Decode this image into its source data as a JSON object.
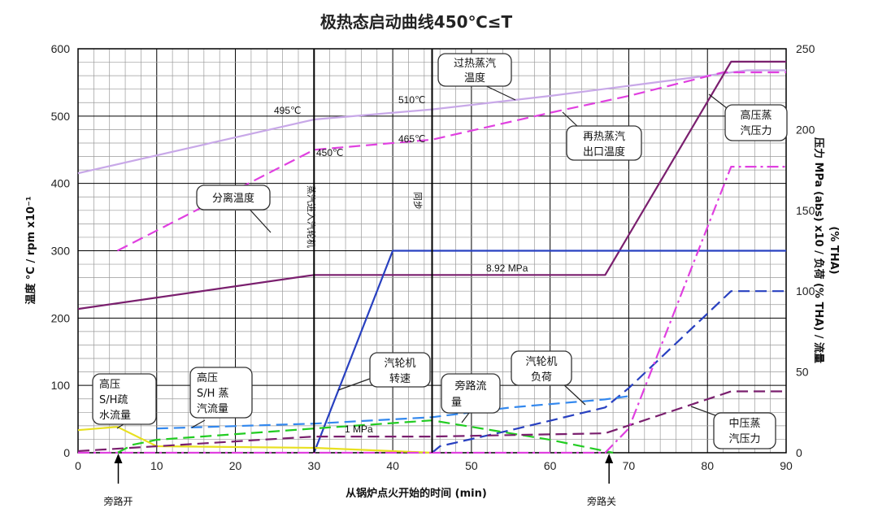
{
  "chart_data": {
    "type": "line",
    "title": "极热态启动曲线450℃≤T",
    "xlabel": "从锅炉点火开始的时间 (min)",
    "ylabel_left": "温度 °C / rpm x10⁻¹",
    "ylabel_right_line1": "压力 MPa (abs) x10 / 负荷 (% THA) / 流量",
    "ylabel_right_line2": "(% THA)",
    "xlim": [
      0,
      90
    ],
    "ylim_left": [
      0,
      600
    ],
    "ylim_right": [
      0,
      250
    ],
    "x_ticks": [
      "0",
      "10",
      "20",
      "30",
      "40",
      "50",
      "60",
      "70",
      "80",
      "90"
    ],
    "y_left_ticks": [
      "0",
      "100",
      "200",
      "300",
      "400",
      "500",
      "600"
    ],
    "y_right_ticks": [
      "0",
      "50",
      "100",
      "150",
      "200",
      "250"
    ],
    "grid": true,
    "series": [
      {
        "name": "过热蒸汽温度",
        "color": "#c8a8e8",
        "dash": "solid",
        "axis": "left",
        "x": [
          0,
          30,
          45,
          60,
          70,
          80,
          85,
          90
        ],
        "y": [
          415,
          495,
          510,
          530,
          545,
          560,
          568,
          568
        ]
      },
      {
        "name": "再热蒸汽出口温度",
        "color": "#e040e0",
        "dash": "dash",
        "axis": "left",
        "x": [
          5,
          30,
          45,
          60,
          70,
          82,
          90
        ],
        "y": [
          300,
          450,
          465,
          505,
          530,
          565,
          565
        ]
      },
      {
        "name": "高压蒸汽压力",
        "color": "#7a1f6e",
        "dash": "solid",
        "axis": "right",
        "x": [
          0,
          30,
          67,
          83,
          90
        ],
        "y": [
          89,
          110,
          110,
          242,
          242
        ]
      },
      {
        "name": "汽轮机转速",
        "color": "#2840c0",
        "dash": "solid",
        "axis": "left",
        "x": [
          30,
          40,
          90
        ],
        "y": [
          0,
          300,
          300
        ]
      },
      {
        "name": "汽轮机负荷",
        "color": "#2840c0",
        "dash": "dash",
        "axis": "right",
        "x": [
          45,
          46,
          55,
          67,
          70,
          83,
          90
        ],
        "y": [
          0,
          4,
          14,
          28,
          40,
          100,
          100
        ]
      },
      {
        "name": "旁路流量",
        "color": "#22cc22",
        "dash": "dash",
        "axis": "right",
        "x": [
          5,
          7,
          10,
          30,
          45,
          60,
          68
        ],
        "y": [
          0,
          5,
          8,
          15,
          20,
          8,
          0
        ]
      },
      {
        "name": "高压S/H疏水流量",
        "color": "#e8e020",
        "dash": "solid",
        "axis": "right",
        "x": [
          0,
          5,
          10,
          30,
          40,
          45
        ],
        "y": [
          14,
          16,
          4,
          3,
          1,
          0
        ]
      },
      {
        "name": "高压S/H蒸汽流量",
        "color": "#3388ee",
        "dash": "dash",
        "axis": "right",
        "x": [
          10,
          30,
          45,
          55,
          67,
          70
        ],
        "y": [
          15,
          18,
          22,
          28,
          33,
          35
        ]
      },
      {
        "name": "中压蒸汽压力",
        "color": "#7a1f6e",
        "dash": "dash",
        "axis": "right",
        "x": [
          0,
          30,
          45,
          67,
          83,
          90
        ],
        "y": [
          1,
          10,
          10,
          12,
          38,
          38
        ]
      },
      {
        "name": "magenta-dashdot",
        "color": "#e040e0",
        "dash": "dashdot",
        "axis": "right",
        "x": [
          0,
          30,
          45,
          67,
          70,
          83,
          90
        ],
        "y": [
          0,
          0,
          0,
          0,
          15,
          177,
          177
        ]
      }
    ],
    "annotations": {
      "v30": "蒸汽进入汽轮机",
      "v45": "同步",
      "t495": "495℃",
      "t510": "510℃",
      "t450": "450℃",
      "t465": "465℃",
      "p892": "8.92 MPa",
      "p1": "1 MPa",
      "bypass_open": "旁路开",
      "bypass_close": "旁路关"
    },
    "callouts": {
      "sh_temp_1": "过热蒸汽",
      "sh_temp_2": "温度",
      "rh_temp_1": "再热蒸汽",
      "rh_temp_2": "出口温度",
      "sep_temp": "分离温度",
      "hp_press_1": "高压蒸",
      "hp_press_2": "汽压力",
      "turb_speed_1": "汽轮机",
      "turb_speed_2": "转速",
      "turb_load_1": "汽轮机",
      "turb_load_2": "负荷",
      "bypass_flow_1": "旁路流",
      "bypass_flow_2": "量",
      "drain_1": "高压",
      "drain_2": "S/H疏",
      "drain_3": "水流量",
      "sh_flow_1": "高压",
      "sh_flow_2": "S/H 蒸",
      "sh_flow_3": "汽流量",
      "ip_press_1": "中压蒸",
      "ip_press_2": "汽压力"
    }
  }
}
